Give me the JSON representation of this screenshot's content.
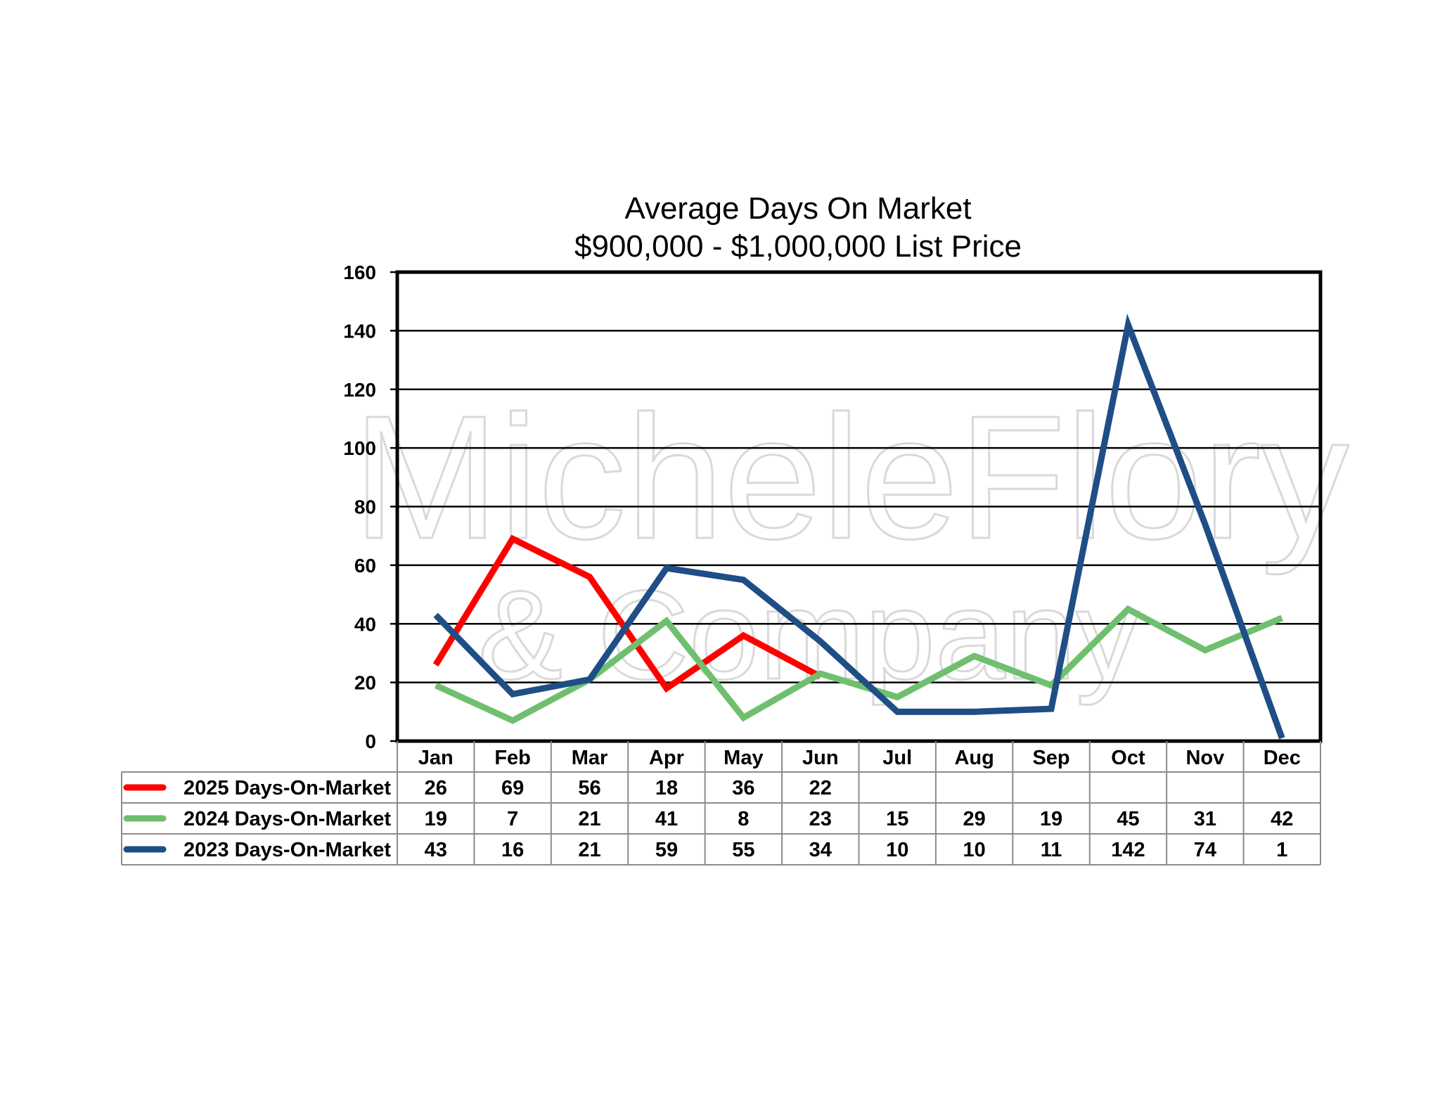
{
  "chart_data": {
    "type": "line",
    "title": "Average Days On Market",
    "subtitle": "$900,000 - $1,000,000 List Price",
    "categories": [
      "Jan",
      "Feb",
      "Mar",
      "Apr",
      "May",
      "Jun",
      "Jul",
      "Aug",
      "Sep",
      "Oct",
      "Nov",
      "Dec"
    ],
    "ylim": [
      0,
      160
    ],
    "yticks": [
      0,
      20,
      40,
      60,
      80,
      100,
      120,
      140,
      160
    ],
    "grid": true,
    "legend_placement": "data-table-left",
    "series": [
      {
        "name": "2025 Days-On-Market",
        "color": "#ff0000",
        "values": [
          26,
          69,
          56,
          18,
          36,
          22,
          null,
          null,
          null,
          null,
          null,
          null
        ]
      },
      {
        "name": "2024 Days-On-Market",
        "color": "#6fbf6f",
        "values": [
          19,
          7,
          21,
          41,
          8,
          23,
          15,
          29,
          19,
          45,
          31,
          42
        ]
      },
      {
        "name": "2023 Days-On-Market",
        "color": "#1f4e86",
        "values": [
          43,
          16,
          21,
          59,
          55,
          34,
          10,
          10,
          11,
          142,
          74,
          1
        ]
      }
    ],
    "watermark": {
      "line1": "MicheleFlory",
      "line2": "& Company"
    }
  }
}
